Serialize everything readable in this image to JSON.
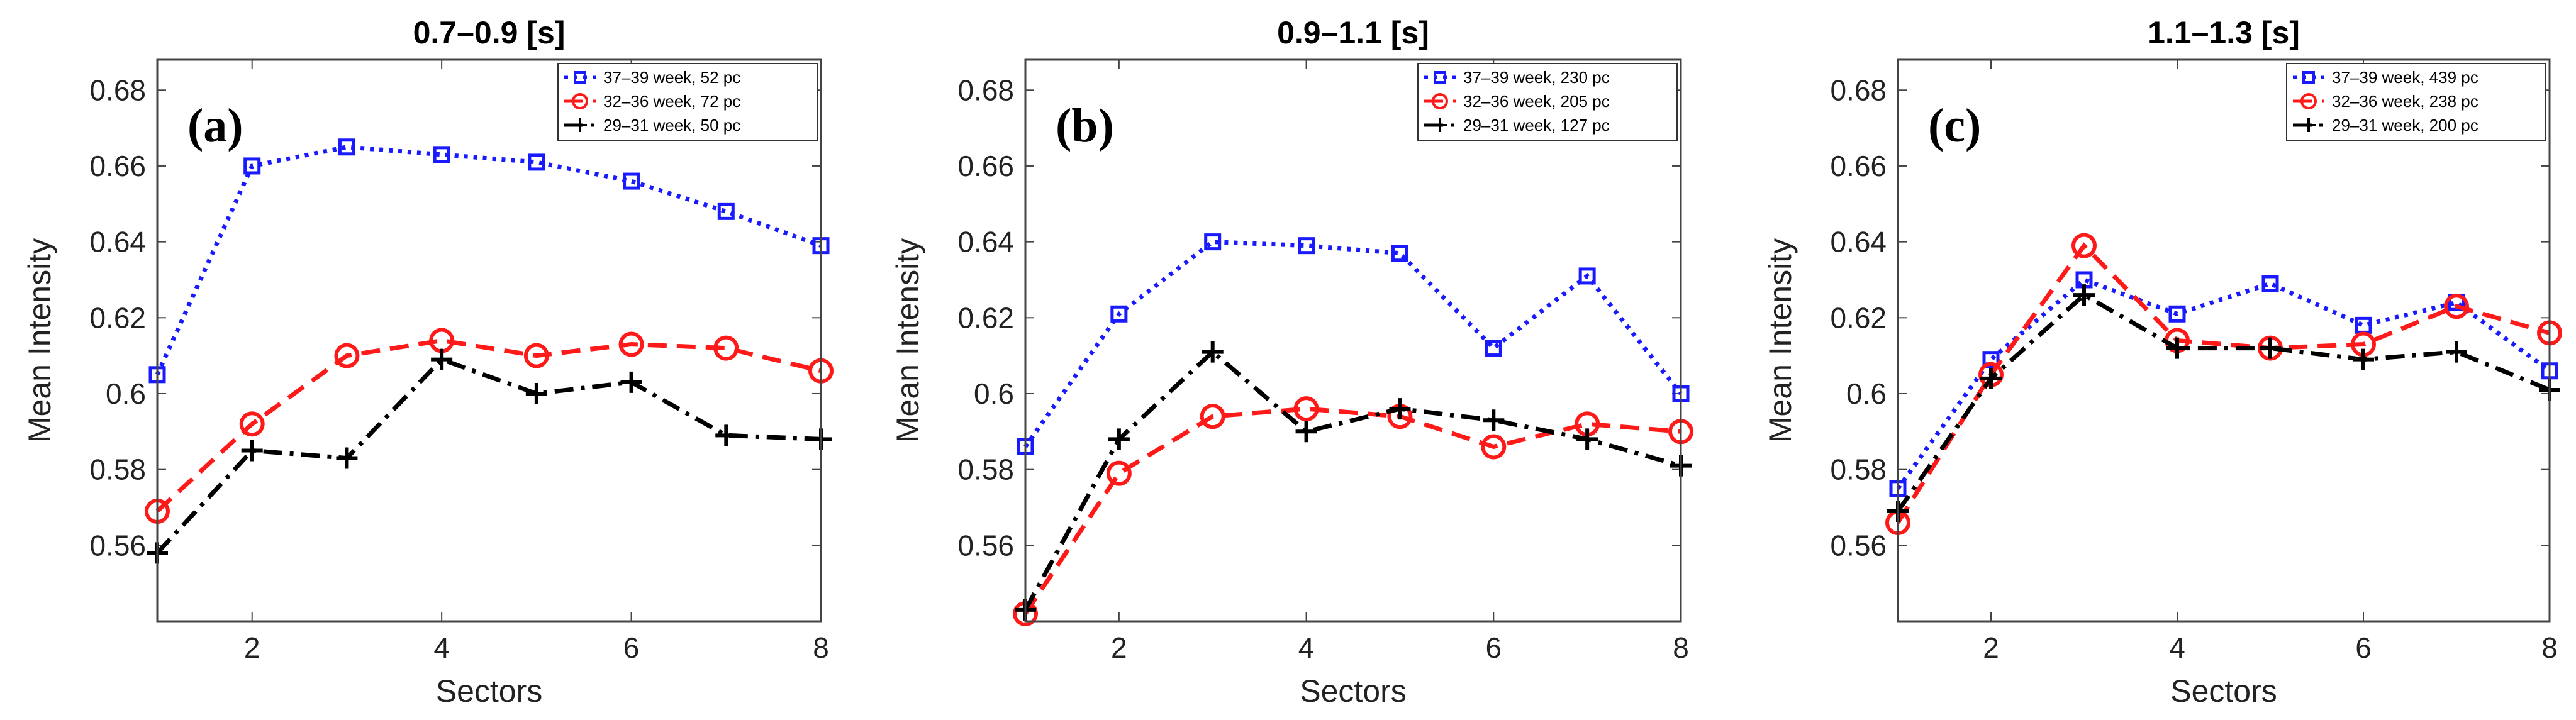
{
  "colors": {
    "blue": "#1a1aff",
    "red": "#ff1a1a",
    "black": "#000000",
    "axis": "#444444"
  },
  "chart_data": [
    {
      "type": "line",
      "title": "0.7–0.9 [s]",
      "panel_label": "(a)",
      "xlabel": "Sectors",
      "ylabel": "Mean Intensity",
      "xlim": [
        1,
        8
      ],
      "ylim": [
        0.54,
        0.688
      ],
      "xticks": [
        2,
        4,
        6,
        8
      ],
      "xtick_labels": [
        "2",
        "4",
        "6",
        "8"
      ],
      "yticks": [
        0.56,
        0.58,
        0.6,
        0.62,
        0.64,
        0.66,
        0.68
      ],
      "ytick_labels": [
        "0.56",
        "0.58",
        "0.6",
        "0.62",
        "0.64",
        "0.66",
        "0.68"
      ],
      "legend_position": "top-right",
      "series": [
        {
          "name": "37–39 week, 52 pc",
          "color": "blue",
          "style": "dotted",
          "marker": "square",
          "x": [
            1,
            2,
            3,
            4,
            5,
            6,
            7,
            8
          ],
          "values": [
            0.605,
            0.66,
            0.665,
            0.663,
            0.661,
            0.656,
            0.648,
            0.639
          ]
        },
        {
          "name": "32–36 week, 72 pc",
          "color": "red",
          "style": "dashed",
          "marker": "circle",
          "x": [
            1,
            2,
            3,
            4,
            5,
            6,
            7,
            8
          ],
          "values": [
            0.569,
            0.592,
            0.61,
            0.614,
            0.61,
            0.613,
            0.612,
            0.606
          ]
        },
        {
          "name": "29–31 week, 50 pc",
          "color": "black",
          "style": "dashdot",
          "marker": "plus",
          "x": [
            1,
            2,
            3,
            4,
            5,
            6,
            7,
            8
          ],
          "values": [
            0.558,
            0.585,
            0.583,
            0.609,
            0.6,
            0.603,
            0.589,
            0.588
          ]
        }
      ]
    },
    {
      "type": "line",
      "title": "0.9–1.1 [s]",
      "panel_label": "(b)",
      "xlabel": "Sectors",
      "ylabel": "Mean Intensity",
      "xlim": [
        1,
        8
      ],
      "ylim": [
        0.54,
        0.688
      ],
      "xticks": [
        2,
        4,
        6,
        8
      ],
      "xtick_labels": [
        "2",
        "4",
        "6",
        "8"
      ],
      "yticks": [
        0.56,
        0.58,
        0.6,
        0.62,
        0.64,
        0.66,
        0.68
      ],
      "ytick_labels": [
        "0.56",
        "0.58",
        "0.6",
        "0.62",
        "0.64",
        "0.66",
        "0.68"
      ],
      "legend_position": "top-right",
      "series": [
        {
          "name": "37–39 week, 230 pc",
          "color": "blue",
          "style": "dotted",
          "marker": "square",
          "x": [
            1,
            2,
            3,
            4,
            5,
            6,
            7,
            8
          ],
          "values": [
            0.586,
            0.621,
            0.64,
            0.639,
            0.637,
            0.612,
            0.631,
            0.6
          ]
        },
        {
          "name": "32–36 week, 205 pc",
          "color": "red",
          "style": "dashed",
          "marker": "circle",
          "x": [
            1,
            2,
            3,
            4,
            5,
            6,
            7,
            8
          ],
          "values": [
            0.542,
            0.579,
            0.594,
            0.596,
            0.594,
            0.586,
            0.592,
            0.59
          ]
        },
        {
          "name": "29–31 week, 127 pc",
          "color": "black",
          "style": "dashdot",
          "marker": "plus",
          "x": [
            1,
            2,
            3,
            4,
            5,
            6,
            7,
            8
          ],
          "values": [
            0.543,
            0.588,
            0.611,
            0.59,
            0.596,
            0.593,
            0.588,
            0.581
          ]
        }
      ]
    },
    {
      "type": "line",
      "title": "1.1–1.3 [s]",
      "panel_label": "(c)",
      "xlabel": "Sectors",
      "ylabel": "Mean Intensity",
      "xlim": [
        1,
        8
      ],
      "ylim": [
        0.54,
        0.688
      ],
      "xticks": [
        2,
        4,
        6,
        8
      ],
      "xtick_labels": [
        "2",
        "4",
        "6",
        "8"
      ],
      "yticks": [
        0.56,
        0.58,
        0.6,
        0.62,
        0.64,
        0.66,
        0.68
      ],
      "ytick_labels": [
        "0.56",
        "0.58",
        "0.6",
        "0.62",
        "0.64",
        "0.66",
        "0.68"
      ],
      "legend_position": "top-right",
      "series": [
        {
          "name": "37–39 week, 439 pc",
          "color": "blue",
          "style": "dotted",
          "marker": "square",
          "x": [
            1,
            2,
            3,
            4,
            5,
            6,
            7,
            8
          ],
          "values": [
            0.575,
            0.609,
            0.63,
            0.621,
            0.629,
            0.618,
            0.624,
            0.606
          ]
        },
        {
          "name": "32–36 week, 238 pc",
          "color": "red",
          "style": "dashed",
          "marker": "circle",
          "x": [
            1,
            2,
            3,
            4,
            5,
            6,
            7,
            8
          ],
          "values": [
            0.566,
            0.605,
            0.639,
            0.614,
            0.612,
            0.613,
            0.623,
            0.616
          ]
        },
        {
          "name": "29–31 week, 200 pc",
          "color": "black",
          "style": "dashdot",
          "marker": "plus",
          "x": [
            1,
            2,
            3,
            4,
            5,
            6,
            7,
            8
          ],
          "values": [
            0.569,
            0.604,
            0.626,
            0.612,
            0.612,
            0.609,
            0.611,
            0.601
          ]
        }
      ]
    }
  ]
}
